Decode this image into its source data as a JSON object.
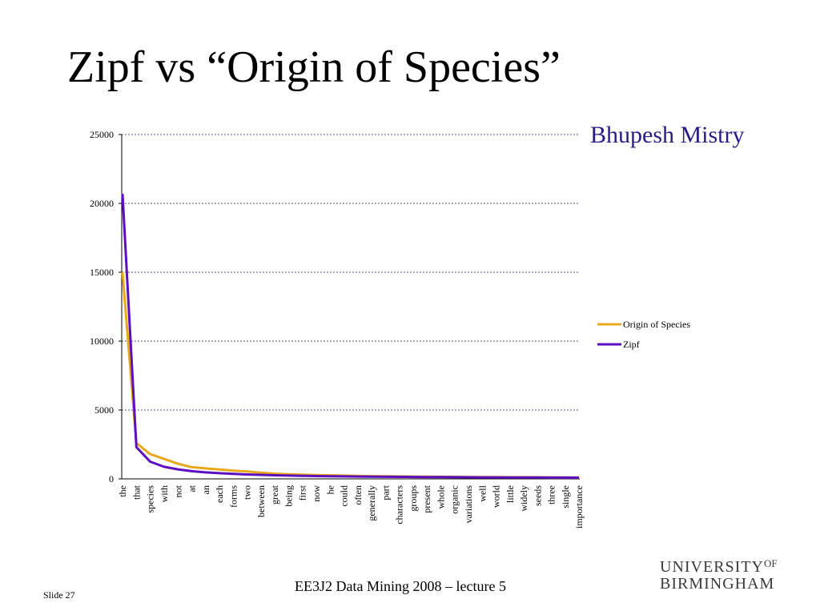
{
  "slide": {
    "title": "Zipf vs “Origin of Species”",
    "author": "Bhupesh Mistry",
    "footer_course": "EE3J2 Data Mining 2008 – lecture 5",
    "slide_number": "Slide 27",
    "logo": {
      "line1": "UNIVERSITY",
      "of": "OF",
      "line2": "BIRMINGHAM"
    }
  },
  "chart_data": {
    "type": "line",
    "title": "",
    "xlabel": "",
    "ylabel": "",
    "ylim": [
      0,
      25000
    ],
    "yticks": [
      0,
      5000,
      10000,
      15000,
      20000,
      25000
    ],
    "grid": true,
    "legend_position": "right",
    "categories": [
      "the",
      "that",
      "species",
      "with",
      "not",
      "at",
      "an",
      "each",
      "forms",
      "two",
      "between",
      "great",
      "being",
      "first",
      "now",
      "he",
      "could",
      "often",
      "generally",
      "part",
      "characters",
      "groups",
      "present",
      "whole",
      "organic",
      "variations",
      "well",
      "world",
      "little",
      "widely",
      "seeds",
      "three",
      "single",
      "importance"
    ],
    "series": [
      {
        "name": "Origin of Species",
        "color": "#e8a81c",
        "values": [
          15000,
          2600,
          1800,
          1450,
          1100,
          850,
          760,
          680,
          600,
          540,
          450,
          380,
          340,
          300,
          280,
          260,
          240,
          220,
          200,
          190,
          180,
          170,
          160,
          150,
          145,
          140,
          135,
          130,
          125,
          120,
          115,
          110,
          105,
          100
        ]
      },
      {
        "name": "Zipf",
        "color": "#5b0fbf",
        "values": [
          20700,
          2300,
          1250,
          880,
          690,
          560,
          470,
          410,
          360,
          320,
          290,
          260,
          240,
          220,
          205,
          190,
          180,
          170,
          160,
          152,
          145,
          138,
          132,
          126,
          121,
          116,
          112,
          108,
          104,
          100,
          97,
          94,
          91,
          88
        ]
      }
    ]
  }
}
